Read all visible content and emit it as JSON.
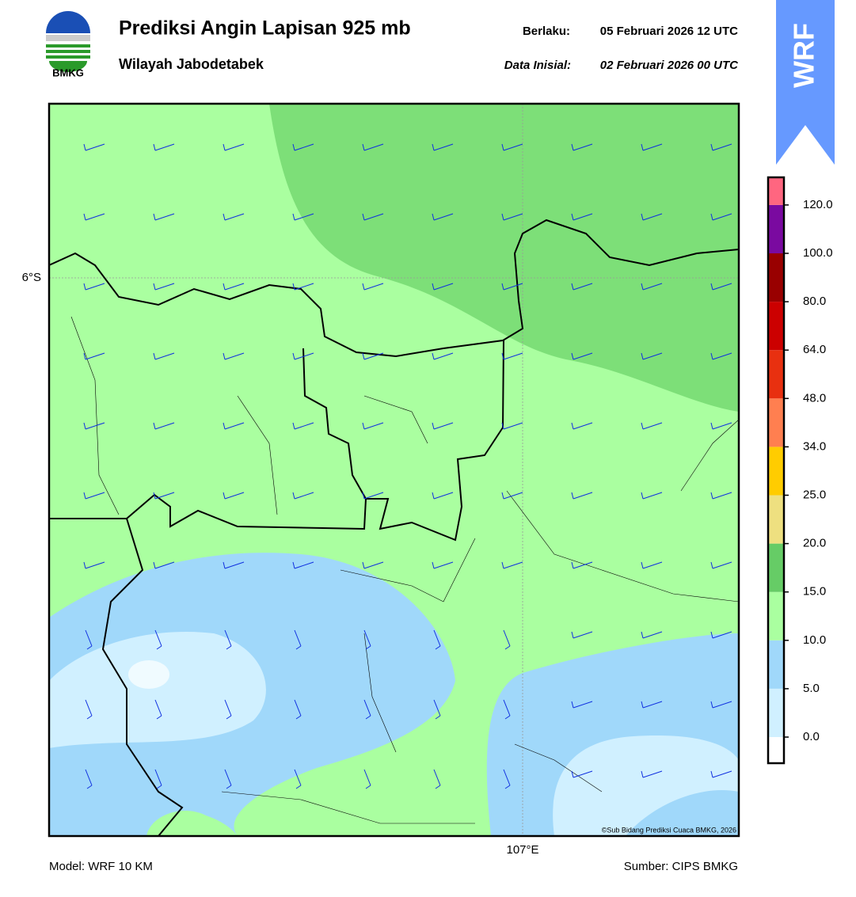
{
  "header": {
    "title": "Prediksi Angin Lapisan 925 mb",
    "subtitle": "Wilayah Jabodetabek",
    "valid_label": "Berlaku:",
    "valid_time": "05 Februari 2026 12 UTC",
    "init_label": "Data Inisial:",
    "init_time": "02 Februari 2026 00 UTC"
  },
  "logo": {
    "text": "BMKG"
  },
  "badge": {
    "text": "WRF"
  },
  "map": {
    "lat_label": "6°S",
    "lon_label": "107°E",
    "credit": "©Sub Bidang Prediksi Cuaca BMKG, 2026"
  },
  "colorbar": {
    "ticks": [
      "0.0",
      "5.0",
      "10.0",
      "15.0",
      "20.0",
      "25.0",
      "34.0",
      "48.0",
      "64.0",
      "80.0",
      "100.0",
      "120.0"
    ],
    "colors": [
      "#ffffff",
      "#d0f0ff",
      "#a0d8fa",
      "#aaffa0",
      "#66cc66",
      "#eee080",
      "#ffcc00",
      "#ff7f50",
      "#e83010",
      "#cc0000",
      "#990000",
      "#7a0aa0",
      "#ff6680"
    ]
  },
  "footer": {
    "model": "Model: WRF 10 KM",
    "source": "Sumber: CIPS BMKG"
  }
}
